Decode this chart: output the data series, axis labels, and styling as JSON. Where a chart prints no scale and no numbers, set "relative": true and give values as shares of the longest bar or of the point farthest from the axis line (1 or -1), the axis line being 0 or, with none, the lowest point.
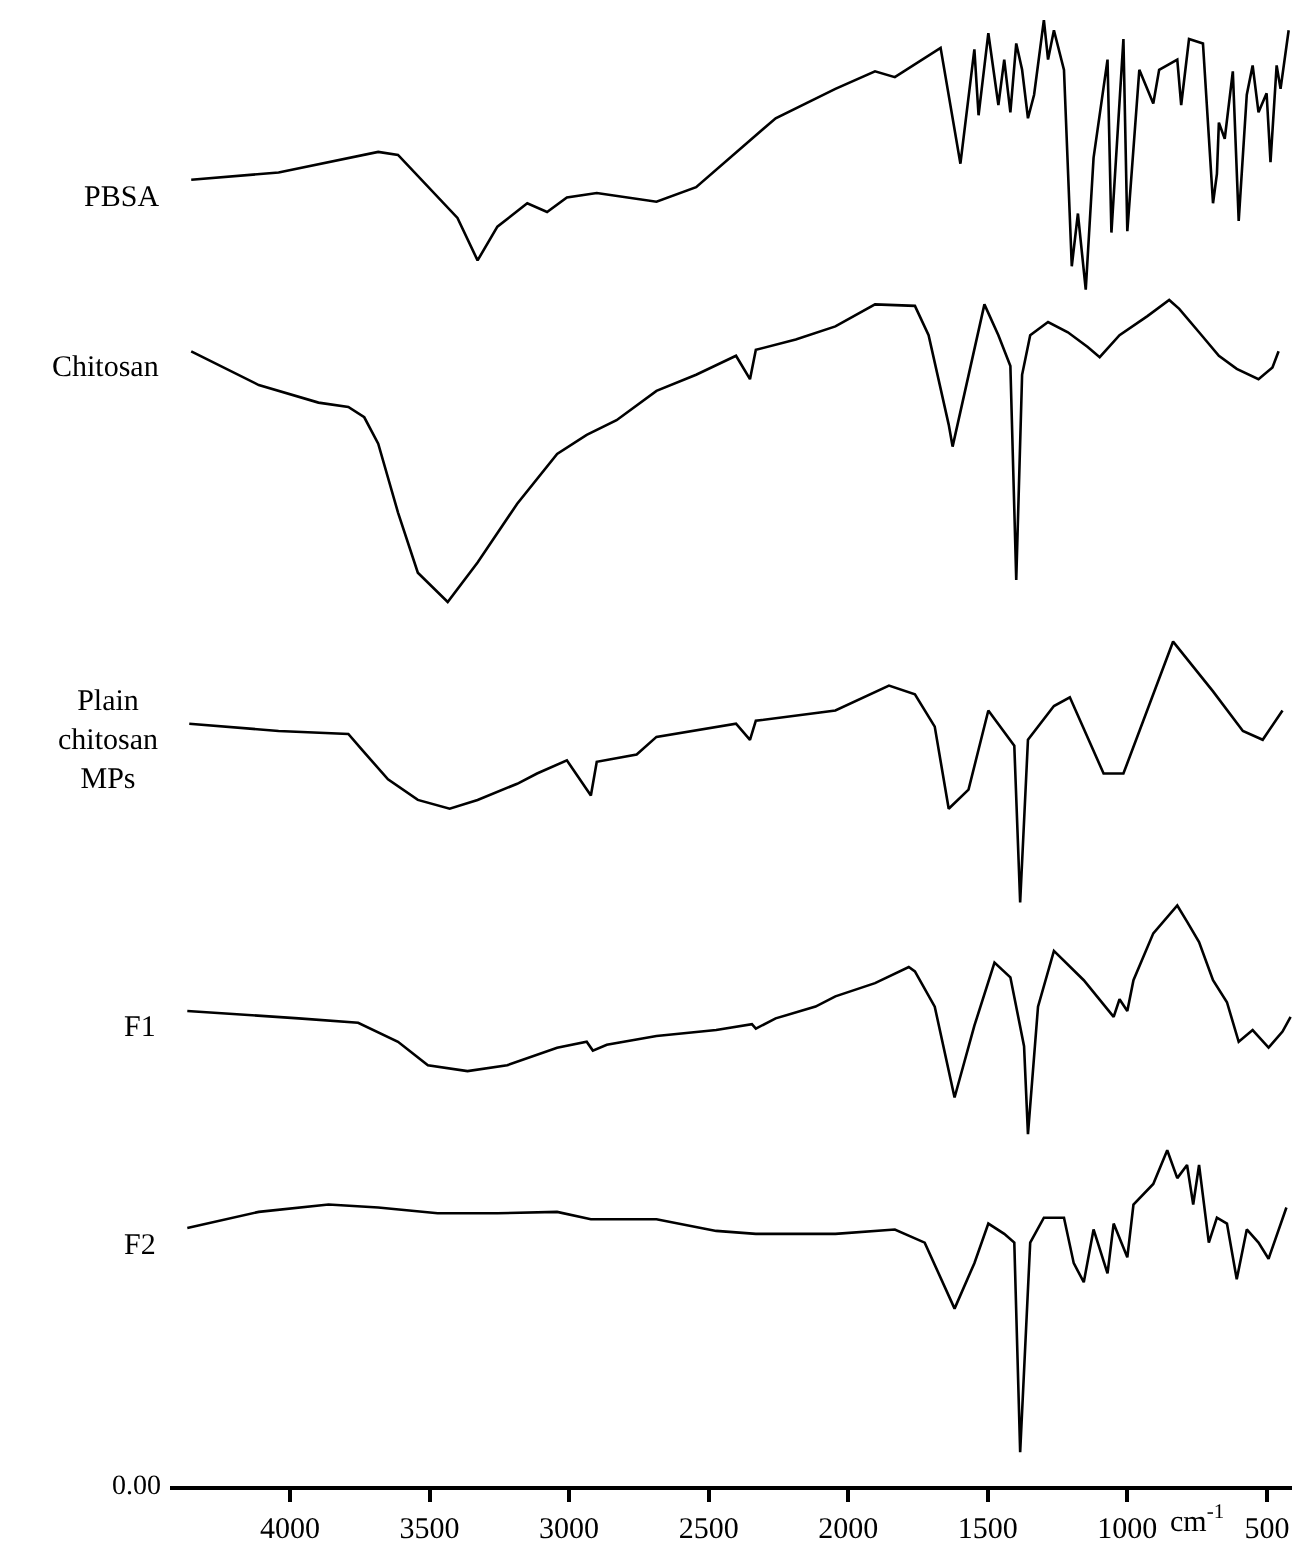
{
  "chart_data": {
    "type": "line",
    "relative": true,
    "xlabel": "cm$^{-1}$",
    "xlim": [
      4430,
      410
    ],
    "xticks": [
      4000,
      3500,
      3000,
      2500,
      2000,
      1500,
      1000,
      500
    ],
    "legend": false,
    "marker": "none",
    "line_style": "solid",
    "annotations": [
      "0.00"
    ],
    "series": [
      {
        "name": "PBSA",
        "color": "#000000",
        "x": [
          4354,
          4041,
          3684,
          3613,
          3400,
          3328,
          3257,
          3150,
          3079,
          3008,
          2901,
          2687,
          2545,
          2260,
          2046,
          1904,
          1833,
          1669,
          1598,
          1548,
          1533,
          1498,
          1462,
          1441,
          1419,
          1398,
          1377,
          1356,
          1334,
          1299,
          1284,
          1263,
          1227,
          1199,
          1177,
          1149,
          1121,
          1071,
          1057,
          1014,
          1000,
          957,
          907,
          886,
          821,
          807,
          779,
          729,
          693,
          679,
          672,
          651,
          622,
          601,
          572,
          551,
          530,
          501,
          487,
          465,
          451,
          422
        ],
        "values": [
          0.891,
          0.896,
          0.91,
          0.908,
          0.865,
          0.836,
          0.859,
          0.875,
          0.869,
          0.879,
          0.882,
          0.876,
          0.886,
          0.933,
          0.953,
          0.965,
          0.961,
          0.981,
          0.902,
          0.98,
          0.935,
          0.991,
          0.942,
          0.973,
          0.937,
          0.984,
          0.966,
          0.933,
          0.949,
          1.0,
          0.973,
          0.993,
          0.966,
          0.832,
          0.868,
          0.816,
          0.906,
          0.973,
          0.855,
          0.987,
          0.856,
          0.966,
          0.943,
          0.966,
          0.973,
          0.942,
          0.987,
          0.984,
          0.875,
          0.895,
          0.93,
          0.919,
          0.965,
          0.863,
          0.949,
          0.969,
          0.937,
          0.95,
          0.903,
          0.969,
          0.953,
          0.993
        ]
      },
      {
        "name": "Chitosan",
        "color": "#000000",
        "x": [
          4354,
          4112,
          3898,
          3791,
          3734,
          3684,
          3613,
          3542,
          3435,
          3328,
          3186,
          3043,
          2937,
          2830,
          2687,
          2545,
          2402,
          2352,
          2331,
          2188,
          2046,
          1904,
          1761,
          1712,
          1640,
          1626,
          1512,
          1462,
          1419,
          1398,
          1377,
          1348,
          1284,
          1213,
          1142,
          1099,
          1028,
          928,
          850,
          814,
          743,
          672,
          608,
          530,
          480,
          458
        ],
        "values": [
          0.774,
          0.751,
          0.739,
          0.736,
          0.729,
          0.711,
          0.664,
          0.623,
          0.603,
          0.63,
          0.67,
          0.704,
          0.717,
          0.727,
          0.747,
          0.758,
          0.771,
          0.755,
          0.775,
          0.782,
          0.791,
          0.806,
          0.805,
          0.785,
          0.724,
          0.709,
          0.806,
          0.785,
          0.764,
          0.618,
          0.758,
          0.785,
          0.794,
          0.787,
          0.777,
          0.77,
          0.785,
          0.798,
          0.809,
          0.803,
          0.787,
          0.771,
          0.762,
          0.755,
          0.763,
          0.774
        ]
      },
      {
        "name": "Plain\nchitosan\nMPs",
        "color": "#000000",
        "x": [
          4361,
          4041,
          3791,
          3741,
          3649,
          3542,
          3428,
          3328,
          3186,
          3115,
          3008,
          2922,
          2901,
          2758,
          2687,
          2402,
          2352,
          2331,
          2046,
          1854,
          1761,
          1690,
          1640,
          1569,
          1498,
          1405,
          1384,
          1356,
          1263,
          1206,
          1085,
          1014,
          836,
          693,
          586,
          515,
          444
        ],
        "values": [
          0.52,
          0.515,
          0.513,
          0.502,
          0.482,
          0.468,
          0.462,
          0.468,
          0.479,
          0.486,
          0.495,
          0.471,
          0.494,
          0.499,
          0.511,
          0.52,
          0.509,
          0.522,
          0.529,
          0.546,
          0.54,
          0.518,
          0.462,
          0.475,
          0.529,
          0.505,
          0.398,
          0.509,
          0.532,
          0.538,
          0.486,
          0.486,
          0.576,
          0.542,
          0.515,
          0.509,
          0.529
        ]
      },
      {
        "name": "F1",
        "color": "#000000",
        "x": [
          4368,
          3969,
          3756,
          3613,
          3506,
          3364,
          3222,
          3043,
          2937,
          2915,
          2865,
          2687,
          2473,
          2345,
          2331,
          2260,
          2117,
          2046,
          1904,
          1783,
          1761,
          1690,
          1619,
          1548,
          1476,
          1419,
          1370,
          1356,
          1320,
          1263,
          1156,
          1049,
          1028,
          1000,
          978,
          907,
          821,
          786,
          743,
          693,
          643,
          601,
          551,
          494,
          444,
          415
        ],
        "values": [
          0.324,
          0.319,
          0.316,
          0.303,
          0.287,
          0.283,
          0.287,
          0.299,
          0.303,
          0.297,
          0.301,
          0.307,
          0.311,
          0.315,
          0.312,
          0.319,
          0.327,
          0.334,
          0.343,
          0.354,
          0.351,
          0.327,
          0.265,
          0.314,
          0.357,
          0.347,
          0.3,
          0.24,
          0.327,
          0.365,
          0.345,
          0.32,
          0.332,
          0.324,
          0.345,
          0.377,
          0.396,
          0.385,
          0.371,
          0.345,
          0.33,
          0.303,
          0.311,
          0.299,
          0.31,
          0.32
        ]
      },
      {
        "name": "F2",
        "color": "#000000",
        "x": [
          4368,
          4112,
          3862,
          3684,
          3471,
          3257,
          3043,
          2922,
          2687,
          2473,
          2331,
          2046,
          1833,
          1726,
          1619,
          1548,
          1498,
          1441,
          1405,
          1384,
          1348,
          1299,
          1227,
          1192,
          1156,
          1121,
          1071,
          1049,
          1000,
          978,
          907,
          857,
          821,
          786,
          764,
          743,
          708,
          679,
          643,
          608,
          572,
          530,
          494,
          430
        ],
        "values": [
          0.176,
          0.187,
          0.192,
          0.19,
          0.186,
          0.186,
          0.187,
          0.182,
          0.182,
          0.174,
          0.172,
          0.172,
          0.175,
          0.166,
          0.121,
          0.152,
          0.179,
          0.172,
          0.166,
          0.023,
          0.166,
          0.183,
          0.183,
          0.152,
          0.139,
          0.175,
          0.145,
          0.179,
          0.156,
          0.192,
          0.206,
          0.229,
          0.21,
          0.219,
          0.192,
          0.219,
          0.166,
          0.183,
          0.179,
          0.141,
          0.175,
          0.166,
          0.155,
          0.19
        ]
      }
    ]
  }
}
